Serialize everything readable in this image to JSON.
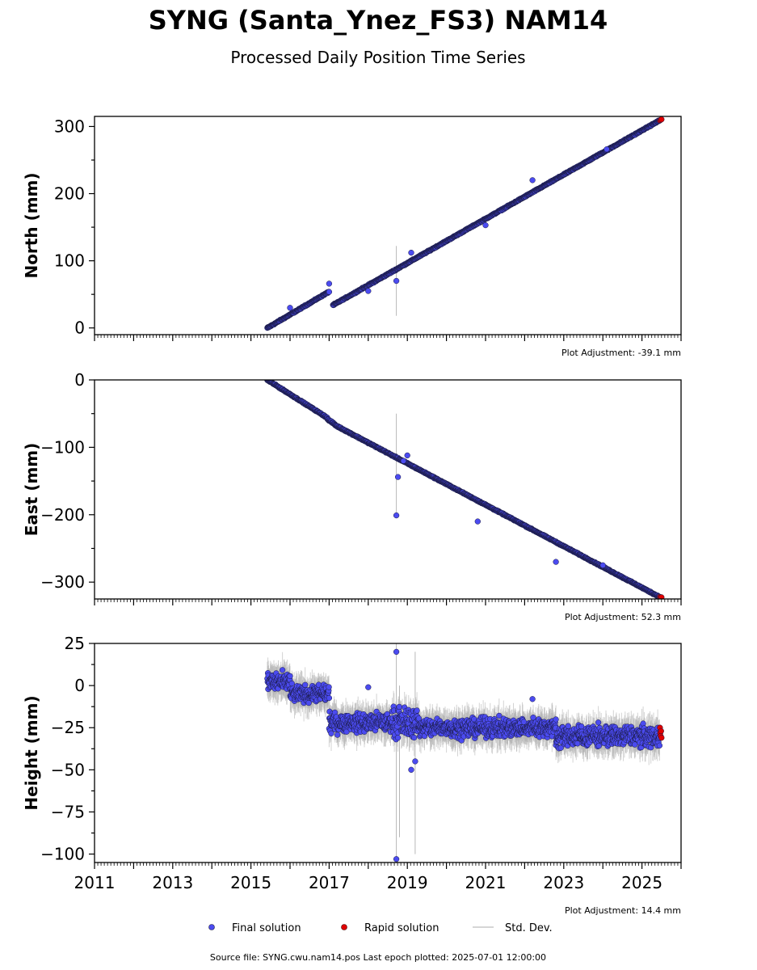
{
  "page": {
    "title": "SYNG (Santa_Ynez_FS3) NAM14",
    "subtitle": "Processed Daily Position Time Series",
    "footer": "Source file: SYNG.cwu.nam14.pos  Last epoch plotted: 2025-07-01 12:00:00"
  },
  "legend": {
    "final": "Final solution",
    "rapid": "Rapid solution",
    "std": "Std. Dev."
  },
  "colors": {
    "final": "#4b4bf0",
    "rapid": "#e00000",
    "std": "#b0b0b0",
    "edge": "#1a1a40"
  },
  "chart_data": [
    {
      "type": "scatter",
      "ylabel": "North (mm)",
      "adjustment": "Plot Adjustment: -39.1 mm",
      "xlim": [
        2011,
        2026
      ],
      "ylim": [
        -10,
        315
      ],
      "yticks": [
        0,
        100,
        200,
        300
      ],
      "series": [
        {
          "name": "Final solution",
          "segments": [
            {
              "x": [
                2015.42,
                2017.0
              ],
              "y": [
                0,
                54
              ]
            },
            {
              "x": [
                2017.1,
                2025.45
              ],
              "y": [
                34,
                309
              ]
            }
          ]
        },
        {
          "name": "Rapid solution",
          "points": [
            [
              2025.46,
              309
            ],
            [
              2025.48,
              310
            ],
            [
              2025.5,
              310.5
            ]
          ]
        }
      ],
      "outliers": [
        [
          2016.0,
          30
        ],
        [
          2017.0,
          66
        ],
        [
          2018.0,
          55
        ],
        [
          2018.72,
          70
        ],
        [
          2019.1,
          112
        ],
        [
          2021.0,
          153
        ],
        [
          2022.2,
          220
        ],
        [
          2024.1,
          266
        ]
      ],
      "stddev_spikes": [
        [
          2018.72,
          70,
          52
        ]
      ]
    },
    {
      "type": "scatter",
      "ylabel": "East (mm)",
      "adjustment": "Plot Adjustment: 52.3 mm",
      "xlim": [
        2011,
        2026
      ],
      "ylim": [
        -325,
        0
      ],
      "yticks": [
        0,
        -100,
        -200,
        -300
      ],
      "series": [
        {
          "name": "Final solution",
          "segments": [
            {
              "x": [
                2015.42,
                2016.95
              ],
              "y": [
                0,
                -56
              ]
            },
            {
              "x": [
                2016.95,
                2017.15
              ],
              "y": [
                -58,
                -66
              ]
            },
            {
              "x": [
                2017.15,
                2025.45
              ],
              "y": [
                -67,
                -322
              ]
            }
          ]
        },
        {
          "name": "Rapid solution",
          "points": [
            [
              2025.46,
              -322
            ],
            [
              2025.48,
              -323
            ],
            [
              2025.5,
              -322.5
            ]
          ]
        }
      ],
      "outliers": [
        [
          2018.72,
          -201
        ],
        [
          2018.76,
          -144
        ],
        [
          2018.9,
          -120
        ],
        [
          2019.0,
          -112
        ],
        [
          2020.8,
          -210
        ],
        [
          2022.8,
          -270
        ],
        [
          2024.0,
          -275
        ]
      ],
      "stddev_spikes": [
        [
          2018.72,
          -125,
          75
        ]
      ]
    },
    {
      "type": "scatter",
      "ylabel": "Height (mm)",
      "adjustment": "Plot Adjustment: 14.4 mm",
      "xlim": [
        2011,
        2026
      ],
      "ylim": [
        -105,
        25
      ],
      "yticks": [
        25,
        0,
        -25,
        -50,
        -75,
        -100
      ],
      "xticks": [
        2011,
        2013,
        2015,
        2017,
        2019,
        2021,
        2023,
        2025
      ],
      "series": [
        {
          "name": "Final solution",
          "levels": [
            {
              "x": [
                2015.42,
                2016.0
              ],
              "y": 2,
              "spread": 9
            },
            {
              "x": [
                2016.0,
                2017.0
              ],
              "y": -5,
              "spread": 8
            },
            {
              "x": [
                2017.0,
                2018.6
              ],
              "y": -22,
              "spread": 9
            },
            {
              "x": [
                2018.6,
                2019.3
              ],
              "y": -22,
              "spread": 14
            },
            {
              "x": [
                2019.3,
                2022.8
              ],
              "y": -25,
              "spread": 9
            },
            {
              "x": [
                2022.8,
                2025.45
              ],
              "y": -30,
              "spread": 10
            }
          ]
        },
        {
          "name": "Rapid solution",
          "points": [
            [
              2025.46,
              -25
            ],
            [
              2025.47,
              -28
            ],
            [
              2025.48,
              -30
            ],
            [
              2025.49,
              -27
            ],
            [
              2025.5,
              -31
            ]
          ]
        }
      ],
      "outliers": [
        [
          2018.72,
          -103
        ],
        [
          2018.72,
          20
        ],
        [
          2018.0,
          -1
        ],
        [
          2019.1,
          -50
        ],
        [
          2019.2,
          -45
        ],
        [
          2022.2,
          -8
        ]
      ],
      "stddev_spikes": [
        [
          2018.72,
          -40,
          65
        ],
        [
          2019.2,
          -40,
          60
        ],
        [
          2018.8,
          -45,
          45
        ]
      ]
    }
  ]
}
